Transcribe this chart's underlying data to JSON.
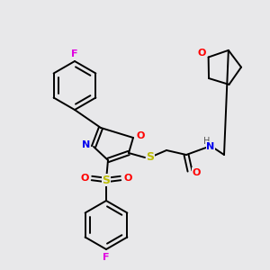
{
  "bg_color": "#e8e8ea",
  "bond_color": "#000000",
  "colors": {
    "F": "#e000e0",
    "O": "#ff0000",
    "N": "#0000ee",
    "S": "#bbbb00",
    "H": "#555555",
    "C": "#000000"
  },
  "figsize": [
    3.0,
    3.0
  ],
  "dpi": 100,
  "lw": 1.4
}
